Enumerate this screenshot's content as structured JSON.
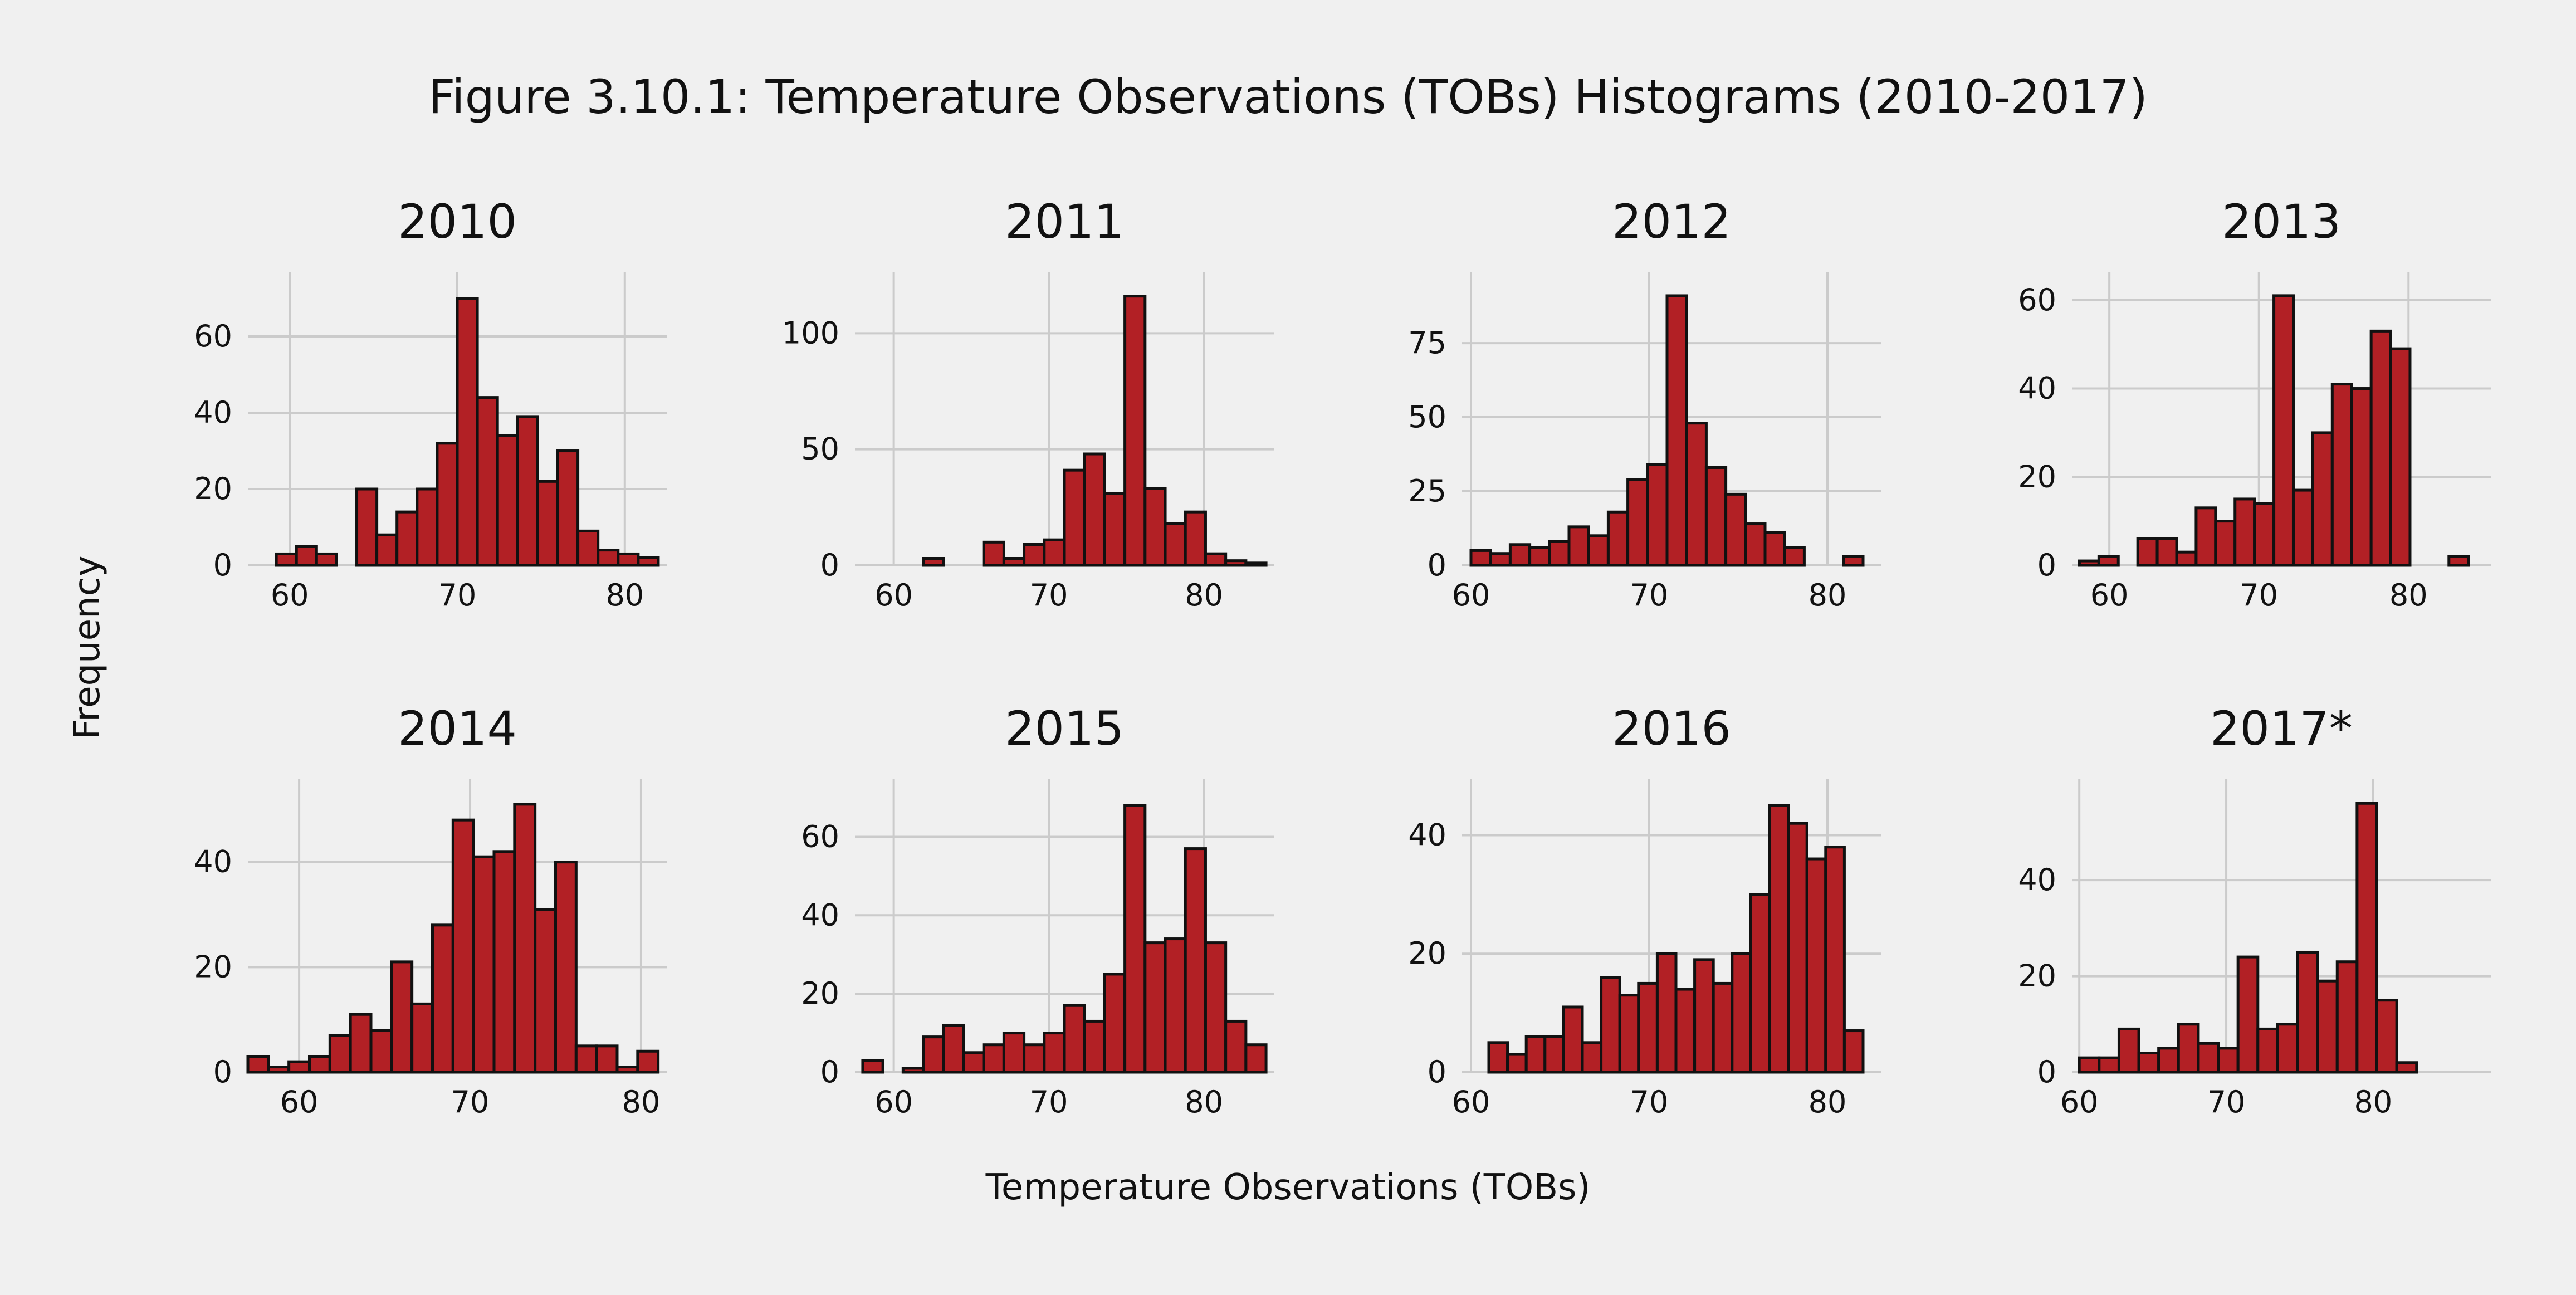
{
  "title": "Figure 3.10.1: Temperature Observations (TOBs) Histograms (2010-2017)",
  "ylabel": "Frequency",
  "xlabel": "Temperature Observations (TOBs)",
  "colors": {
    "bar": "#b22025",
    "edge": "#111111",
    "grid": "#cbcbcb",
    "background": "#f0f0f0"
  },
  "chart_data": [
    {
      "type": "bar",
      "title": "2010",
      "bin_start": 58.0,
      "bin_width": 1.2,
      "values": [
        0,
        3,
        5,
        3,
        0,
        20,
        8,
        14,
        20,
        32,
        70,
        44,
        34,
        39,
        22,
        30,
        9,
        4,
        3,
        2
      ],
      "xticks": [
        60,
        70,
        80
      ],
      "xlim": [
        57.5,
        82.5
      ],
      "yticks": [
        0,
        20,
        40,
        60
      ],
      "ylim": [
        0,
        73
      ],
      "grid": true
    },
    {
      "type": "bar",
      "title": "2011",
      "bin_start": 58.0,
      "bin_width": 1.3,
      "values": [
        0,
        0,
        0,
        3,
        0,
        0,
        10,
        3,
        9,
        11,
        41,
        48,
        31,
        116,
        33,
        18,
        23,
        5,
        2,
        1
      ],
      "xticks": [
        60,
        70,
        80
      ],
      "xlim": [
        57.5,
        84.5
      ],
      "yticks": [
        0,
        50,
        100
      ],
      "ylim": [
        0,
        120
      ],
      "grid": true
    },
    {
      "type": "bar",
      "title": "2012",
      "bin_start": 60.0,
      "bin_width": 1.1,
      "values": [
        5,
        4,
        7,
        6,
        8,
        13,
        10,
        18,
        29,
        34,
        91,
        48,
        33,
        24,
        14,
        11,
        6,
        0,
        0,
        3
      ],
      "xticks": [
        60,
        70,
        80
      ],
      "xlim": [
        59.5,
        83
      ],
      "yticks": [
        0,
        25,
        50,
        75
      ],
      "ylim": [
        0,
        94
      ],
      "grid": true
    },
    {
      "type": "bar",
      "title": "2013",
      "bin_start": 58.0,
      "bin_width": 1.3,
      "values": [
        1,
        2,
        0,
        6,
        6,
        3,
        13,
        10,
        15,
        14,
        61,
        17,
        30,
        41,
        40,
        53,
        49,
        0,
        0,
        2
      ],
      "xticks": [
        60,
        70,
        80
      ],
      "xlim": [
        57.5,
        85.5
      ],
      "yticks": [
        0,
        20,
        40,
        60
      ],
      "ylim": [
        0,
        63
      ],
      "grid": true
    },
    {
      "type": "bar",
      "title": "2014",
      "bin_start": 57.0,
      "bin_width": 1.2,
      "values": [
        3,
        1,
        2,
        3,
        7,
        11,
        8,
        21,
        13,
        28,
        48,
        41,
        42,
        51,
        31,
        40,
        5,
        5,
        1,
        4
      ],
      "xticks": [
        60,
        70,
        80
      ],
      "xlim": [
        57,
        81.5
      ],
      "yticks": [
        0,
        20,
        40
      ],
      "ylim": [
        0,
        53
      ],
      "grid": true
    },
    {
      "type": "bar",
      "title": "2015",
      "bin_start": 58.0,
      "bin_width": 1.3,
      "values": [
        3,
        0,
        1,
        9,
        12,
        5,
        7,
        10,
        7,
        10,
        17,
        13,
        25,
        68,
        33,
        34,
        57,
        33,
        13,
        7
      ],
      "xticks": [
        60,
        70,
        80
      ],
      "xlim": [
        57.5,
        84.5
      ],
      "yticks": [
        0,
        20,
        40,
        60
      ],
      "ylim": [
        0,
        71
      ],
      "grid": true
    },
    {
      "type": "bar",
      "title": "2016",
      "bin_start": 61.0,
      "bin_width": 1.05,
      "values": [
        5,
        3,
        6,
        6,
        11,
        5,
        16,
        13,
        15,
        20,
        14,
        19,
        15,
        20,
        30,
        45,
        42,
        36,
        38,
        7
      ],
      "xticks": [
        60,
        70,
        80
      ],
      "xlim": [
        59.5,
        83
      ],
      "yticks": [
        0,
        20,
        40
      ],
      "ylim": [
        0,
        47
      ],
      "grid": true
    },
    {
      "type": "bar",
      "title": "2017*",
      "bin_start": 60.0,
      "bin_width": 1.35,
      "values": [
        3,
        3,
        9,
        4,
        5,
        10,
        6,
        5,
        24,
        9,
        10,
        25,
        19,
        23,
        56,
        15,
        2,
        0,
        0,
        0
      ],
      "xticks": [
        60,
        70,
        80
      ],
      "xlim": [
        59.5,
        88
      ],
      "yticks": [
        0,
        20,
        40
      ],
      "ylim": [
        0,
        58
      ],
      "grid": true
    }
  ]
}
